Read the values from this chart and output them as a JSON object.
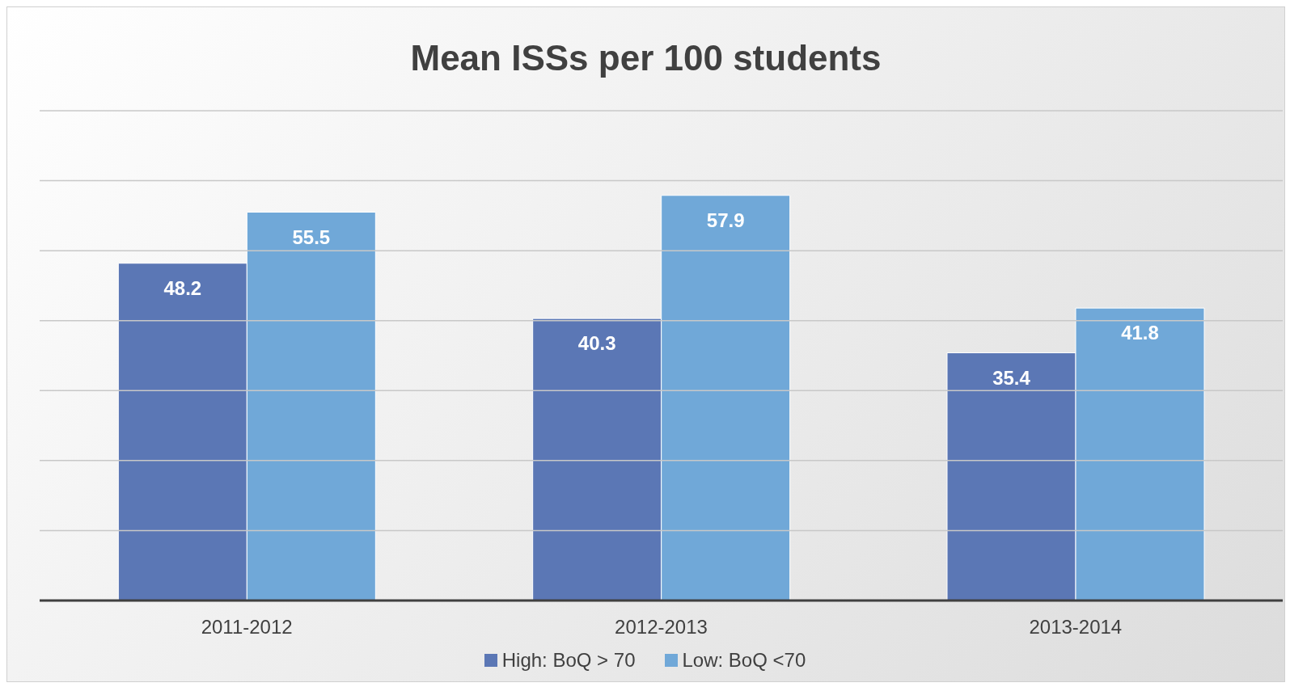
{
  "chart_data": {
    "type": "bar",
    "title": "Mean ISSs per 100 students",
    "categories": [
      "2011-2012",
      "2012-2013",
      "2013-2014"
    ],
    "series": [
      {
        "name": "High: BoQ > 70",
        "color": "#5b77b5",
        "values": [
          48.2,
          40.3,
          35.4
        ]
      },
      {
        "name": "Low: BoQ <70",
        "color": "#70a8d8",
        "values": [
          55.5,
          57.9,
          41.8
        ]
      }
    ],
    "ylim": [
      0,
      70
    ],
    "yticks": [
      {
        "value": 0,
        "label": null
      },
      {
        "value": 10,
        "label": null
      },
      {
        "value": 20,
        "label": null
      },
      {
        "value": 30,
        "label": null
      },
      {
        "value": 40,
        "label": null
      },
      {
        "value": 50,
        "label": null
      },
      {
        "value": 60,
        "label": null
      },
      {
        "value": 70,
        "label": null
      }
    ],
    "grid": "y",
    "tick_labels": "x",
    "data_labels": true,
    "legend": "bottom"
  }
}
